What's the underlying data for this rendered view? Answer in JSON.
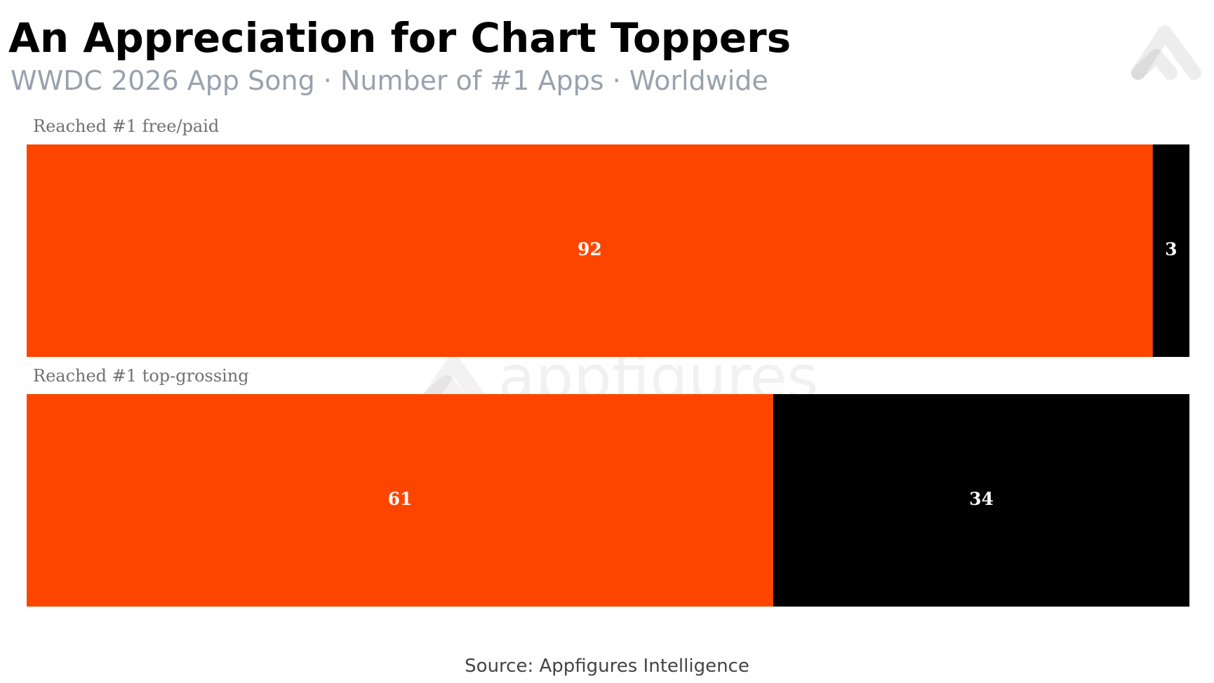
{
  "chart_data": {
    "type": "stacked-bar",
    "orientation": "horizontal",
    "title": "An Appreciation for Chart Toppers",
    "subtitle": "WWDC 2026 App Song · Number of #1 Apps · Worldwide",
    "categories": [
      "Reached #1 free/paid",
      "Reached #1 top-grossing"
    ],
    "series": [
      {
        "color": "#fe4500",
        "values": [
          92,
          61
        ]
      },
      {
        "color": "#000000",
        "values": [
          3,
          34
        ]
      }
    ],
    "xlim": [
      0,
      95
    ],
    "source": "Source: Appfigures Intelligence",
    "watermark": "appfigures"
  }
}
